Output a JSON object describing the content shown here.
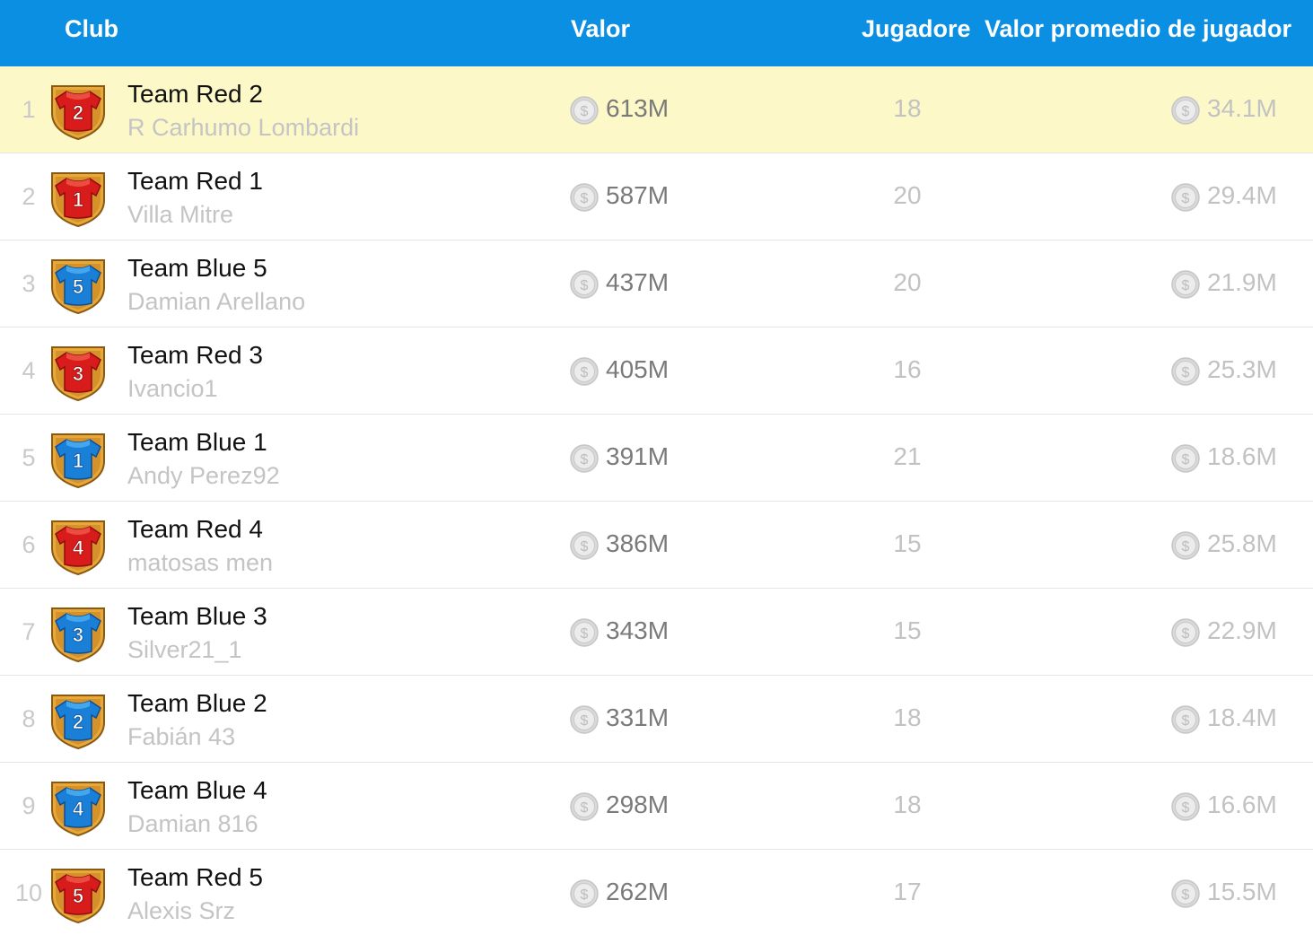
{
  "header": {
    "club": "Club",
    "value": "Valor",
    "players": "Jugadore",
    "avg_value": "Valor promedio de jugador"
  },
  "colors": {
    "header_bg": "#0b8fe3",
    "highlight_row": "#fdf8c8",
    "red_jersey": "#d81c1c",
    "blue_jersey": "#1a7fd6"
  },
  "rows": [
    {
      "rank": "1",
      "team": "Team Red 2",
      "manager": "R Carhumo Lombardi",
      "value": "613M",
      "players": "18",
      "avg": "34.1M",
      "jersey_number": "2",
      "jersey_color": "red",
      "highlighted": true
    },
    {
      "rank": "2",
      "team": "Team Red 1",
      "manager": "Villa Mitre",
      "value": "587M",
      "players": "20",
      "avg": "29.4M",
      "jersey_number": "1",
      "jersey_color": "red",
      "highlighted": false
    },
    {
      "rank": "3",
      "team": "Team Blue 5",
      "manager": "Damian Arellano",
      "value": "437M",
      "players": "20",
      "avg": "21.9M",
      "jersey_number": "5",
      "jersey_color": "blue",
      "highlighted": false
    },
    {
      "rank": "4",
      "team": "Team Red 3",
      "manager": "Ivancio1",
      "value": "405M",
      "players": "16",
      "avg": "25.3M",
      "jersey_number": "3",
      "jersey_color": "red",
      "highlighted": false
    },
    {
      "rank": "5",
      "team": "Team Blue 1",
      "manager": "Andy Perez92",
      "value": "391M",
      "players": "21",
      "avg": "18.6M",
      "jersey_number": "1",
      "jersey_color": "blue",
      "highlighted": false
    },
    {
      "rank": "6",
      "team": "Team Red 4",
      "manager": "matosas men",
      "value": "386M",
      "players": "15",
      "avg": "25.8M",
      "jersey_number": "4",
      "jersey_color": "red",
      "highlighted": false
    },
    {
      "rank": "7",
      "team": "Team Blue 3",
      "manager": "Silver21_1",
      "value": "343M",
      "players": "15",
      "avg": "22.9M",
      "jersey_number": "3",
      "jersey_color": "blue",
      "highlighted": false
    },
    {
      "rank": "8",
      "team": "Team Blue 2",
      "manager": "Fabián 43",
      "value": "331M",
      "players": "18",
      "avg": "18.4M",
      "jersey_number": "2",
      "jersey_color": "blue",
      "highlighted": false
    },
    {
      "rank": "9",
      "team": "Team Blue 4",
      "manager": "Damian 816",
      "value": "298M",
      "players": "18",
      "avg": "16.6M",
      "jersey_number": "4",
      "jersey_color": "blue",
      "highlighted": false
    },
    {
      "rank": "10",
      "team": "Team Red 5",
      "manager": "Alexis Srz",
      "value": "262M",
      "players": "17",
      "avg": "15.5M",
      "jersey_number": "5",
      "jersey_color": "red",
      "highlighted": false
    }
  ]
}
